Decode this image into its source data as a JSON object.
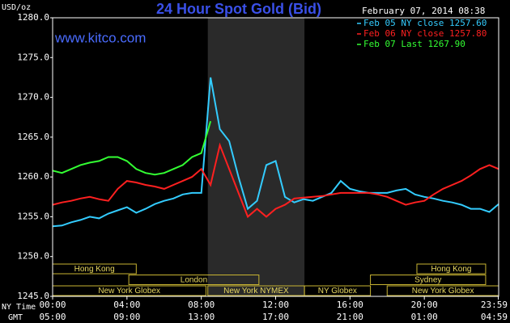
{
  "chart_data": {
    "type": "line",
    "title": "24 Hour Spot Gold (Bid)",
    "website": "www.kitco.com",
    "timestamp": "February 07, 2014 08:38",
    "y_label": "USD/oz",
    "x_label": "NY Time",
    "x2_label": "GMT",
    "xlim": [
      0,
      24
    ],
    "xticks": [
      {
        "value": 0,
        "label": "00:00"
      },
      {
        "value": 4,
        "label": "04:00"
      },
      {
        "value": 8,
        "label": "08:00"
      },
      {
        "value": 12,
        "label": "12:00"
      },
      {
        "value": 16,
        "label": "16:00"
      },
      {
        "value": 20,
        "label": "20:00"
      },
      {
        "value": 23.98,
        "label": "23:59"
      }
    ],
    "x2ticks": [
      {
        "value": 0,
        "label": "05:00"
      },
      {
        "value": 4,
        "label": "09:00"
      },
      {
        "value": 8,
        "label": "13:00"
      },
      {
        "value": 12,
        "label": "17:00"
      },
      {
        "value": 16,
        "label": "21:00"
      },
      {
        "value": 20,
        "label": "01:00"
      },
      {
        "value": 23.98,
        "label": "04:59"
      }
    ],
    "ylim": [
      1245,
      1280
    ],
    "yticks": [
      {
        "value": 1245,
        "label": "1245.0"
      },
      {
        "value": 1250,
        "label": "1250.0"
      },
      {
        "value": 1255,
        "label": "1255.0"
      },
      {
        "value": 1260,
        "label": "1260.0"
      },
      {
        "value": 1265,
        "label": "1265.0"
      },
      {
        "value": 1270,
        "label": "1270.0"
      },
      {
        "value": 1275,
        "label": "1275.0"
      },
      {
        "value": 1280,
        "label": "1280.0"
      }
    ],
    "grid": false,
    "shaded_range": [
      8.35,
      13.55
    ],
    "sessions": [
      [
        {
          "name": "Hong Kong",
          "start": 0,
          "end": 4.5
        },
        {
          "name": "Hong Kong",
          "start": 19.6,
          "end": 23.3
        }
      ],
      [
        {
          "name": "London",
          "start": 4.1,
          "end": 11.1
        },
        {
          "name": "Sydney",
          "start": 17.1,
          "end": 23.3
        }
      ],
      [
        {
          "name": "New York Globex",
          "start": 0,
          "end": 8.25
        },
        {
          "name": "New York NYMEX",
          "start": 8.35,
          "end": 13.55
        },
        {
          "name": "NY Globex",
          "start": 13.55,
          "end": 17.1
        },
        {
          "name": "New York Globex",
          "start": 18,
          "end": 24
        }
      ]
    ],
    "x": [
      0,
      0.5,
      1,
      1.5,
      2,
      2.5,
      3,
      3.5,
      4,
      4.5,
      5,
      5.5,
      6,
      6.5,
      7,
      7.5,
      8,
      8.5,
      9,
      9.5,
      10,
      10.5,
      11,
      11.5,
      12,
      12.5,
      13,
      13.5,
      14,
      14.5,
      15,
      15.5,
      16,
      16.5,
      17,
      17.5,
      18,
      18.5,
      19,
      19.5,
      20,
      20.5,
      21,
      21.5,
      22,
      22.5,
      23,
      23.5,
      24
    ],
    "series": [
      {
        "name": "Feb 05 NY close 1257.60",
        "color": "#33ccff",
        "values": [
          1253.8,
          1253.9,
          1254.3,
          1254.6,
          1255,
          1254.8,
          1255.4,
          1255.8,
          1256.2,
          1255.5,
          1256,
          1256.6,
          1257,
          1257.3,
          1257.8,
          1258,
          1258,
          1272.5,
          1266,
          1264.5,
          1260,
          1256,
          1257,
          1261.5,
          1262,
          1257.5,
          1256.8,
          1257.2,
          1257,
          1257.5,
          1258,
          1259.5,
          1258.5,
          1258.2,
          1258,
          1258,
          1258,
          1258.3,
          1258.5,
          1257.8,
          1257.5,
          1257.3,
          1257,
          1256.8,
          1256.5,
          1256,
          1256,
          1255.6,
          1256.6
        ]
      },
      {
        "name": "Feb 06 NY close 1257.80",
        "color": "#ff2020",
        "values": [
          1256.5,
          1256.8,
          1257,
          1257.3,
          1257.5,
          1257.2,
          1257,
          1258.5,
          1259.5,
          1259.3,
          1259,
          1258.8,
          1258.5,
          1259,
          1259.5,
          1260,
          1261,
          1259,
          1264,
          1261,
          1258,
          1255,
          1256,
          1255,
          1256,
          1256.5,
          1257.3,
          1257.4,
          1257.5,
          1257.6,
          1257.8,
          1258,
          1258,
          1258,
          1258,
          1257.8,
          1257.5,
          1257,
          1256.5,
          1256.8,
          1257,
          1257.8,
          1258.5,
          1259,
          1259.5,
          1260.2,
          1261,
          1261.5,
          1261
        ]
      },
      {
        "name": "Feb 07 Last 1267.90",
        "color": "#33ff33",
        "values": [
          1260.8,
          1260.5,
          1261,
          1261.5,
          1261.8,
          1262,
          1262.5,
          1262.5,
          1262,
          1261,
          1260.5,
          1260.3,
          1260.5,
          1261,
          1261.5,
          1262.5,
          1263,
          1267,
          null,
          null,
          null,
          null,
          null,
          null,
          null,
          null,
          null,
          null,
          null,
          null,
          null,
          null,
          null,
          null,
          null,
          null,
          null,
          null,
          null,
          null,
          null,
          null,
          null,
          null,
          null,
          null,
          null,
          null,
          null
        ]
      }
    ]
  }
}
